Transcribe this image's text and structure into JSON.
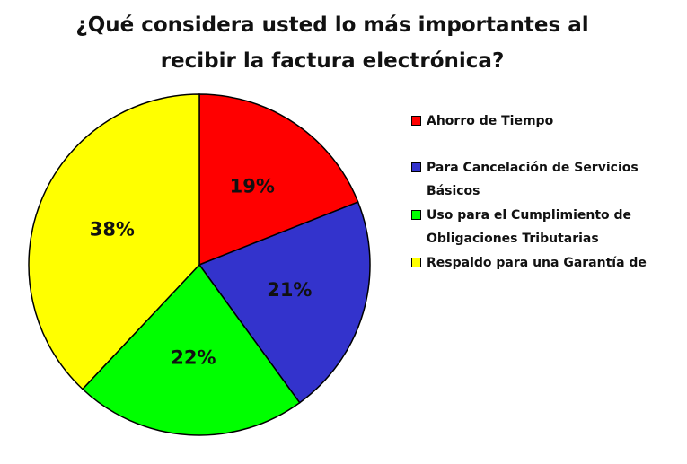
{
  "chart_data": {
    "type": "pie",
    "title": "¿Qué considera usted lo más importantes al recibir la factura electrónica?",
    "categories": [
      "Ahorro de Tiempo",
      "Para Cancelación de Servicios Básicos",
      "Uso para el Cumplimiento de Obligaciones Tributarias",
      "Respaldo para una Garantía de"
    ],
    "values": [
      19,
      21,
      22,
      38
    ],
    "value_labels": [
      "19%",
      "21%",
      "22%",
      "38%"
    ],
    "colors": [
      "#ff0000",
      "#3333cc",
      "#00ff00",
      "#ffff00"
    ],
    "legend": "right"
  }
}
